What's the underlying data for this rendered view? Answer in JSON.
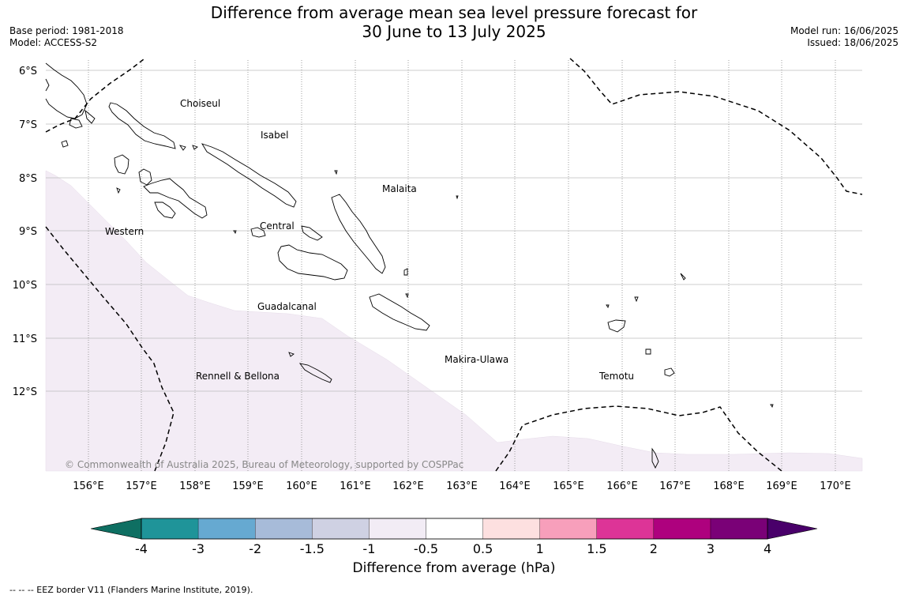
{
  "title_line1": "Difference from average mean sea level pressure forecast for",
  "title_line2": "30 June to 13 July 2025",
  "meta_left": {
    "base_period": "Base period: 1981-2018",
    "model": "Model: ACCESS-S2"
  },
  "meta_right": {
    "model_run": "Model run: 16/06/2025",
    "issued": "Issued: 18/06/2025"
  },
  "map": {
    "lat_labels": [
      "6°S",
      "7°S",
      "8°S",
      "9°S",
      "10°S",
      "11°S",
      "12°S"
    ],
    "lon_labels": [
      "156°E",
      "157°E",
      "158°E",
      "159°E",
      "160°E",
      "161°E",
      "162°E",
      "163°E",
      "164°E",
      "165°E",
      "166°E",
      "167°E",
      "168°E",
      "169°E",
      "170°E"
    ],
    "regions": [
      "Choiseul",
      "Isabel",
      "Malaita",
      "Western",
      "Central",
      "Guadalcanal",
      "Makira-Ulawa",
      "Rennell & Bellona",
      "Temotu"
    ],
    "shaded_anomaly_range": "-1 to -0.5",
    "copyright": "© Commonwealth of Australia 2025, Bureau of Meteorology, supported by COSPPac",
    "colors": {
      "land_outline": "#000000",
      "shaded_region": "#f3ecf5",
      "grid": "#bbbbbb"
    }
  },
  "colorbar": {
    "tick_labels": [
      "-4",
      "-3",
      "-2",
      "-1.5",
      "-1",
      "-0.5",
      "0.5",
      "1",
      "1.5",
      "2",
      "3",
      "4"
    ],
    "colors": [
      "#0e6f62",
      "#1f9499",
      "#66a9d1",
      "#a7bbd9",
      "#cfd1e3",
      "#f2ecf5",
      "#ffffff",
      "#fde0e0",
      "#f79fbb",
      "#dd3497",
      "#ae017e",
      "#7a0177",
      "#49006a"
    ],
    "label": "Difference from average (hPa)"
  },
  "footnote": "--  --  -- EEZ border V11 (Flanders Marine Institute, 2019)."
}
